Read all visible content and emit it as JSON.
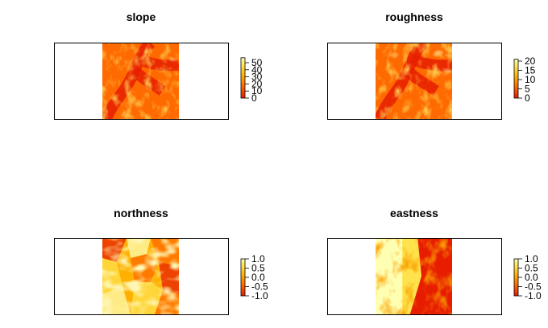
{
  "chart_data": [
    {
      "type": "heatmap",
      "title": "slope",
      "color_scale": [
        "#e81d00",
        "#ff6a00",
        "#ffb000",
        "#ffe34d",
        "#ffffb3"
      ],
      "legend_ticks": [
        "0",
        "10",
        "20",
        "30",
        "40",
        "50"
      ],
      "legend_range": [
        0,
        57
      ],
      "texture": "drainage"
    },
    {
      "type": "heatmap",
      "title": "roughness",
      "color_scale": [
        "#e81d00",
        "#ff6a00",
        "#ffb000",
        "#ffe34d",
        "#ffffb3"
      ],
      "legend_ticks": [
        "0",
        "5",
        "10",
        "15",
        "20"
      ],
      "legend_range": [
        0,
        21
      ],
      "texture": "drainage"
    },
    {
      "type": "heatmap",
      "title": "northness",
      "color_scale": [
        "#e81d00",
        "#ff6a00",
        "#ffb000",
        "#ffe34d",
        "#ffffb3"
      ],
      "legend_ticks": [
        "1.0",
        "0.5",
        "0.0",
        "-0.5",
        "-1.0"
      ],
      "legend_range": [
        -1,
        1
      ],
      "texture": "facets"
    },
    {
      "type": "heatmap",
      "title": "eastness",
      "color_scale": [
        "#e81d00",
        "#ff6a00",
        "#ffb000",
        "#ffe34d",
        "#ffffb3"
      ],
      "legend_ticks": [
        "1.0",
        "0.5",
        "0.0",
        "-0.5",
        "-1.0"
      ],
      "legend_range": [
        -1,
        1
      ],
      "texture": "split"
    }
  ]
}
